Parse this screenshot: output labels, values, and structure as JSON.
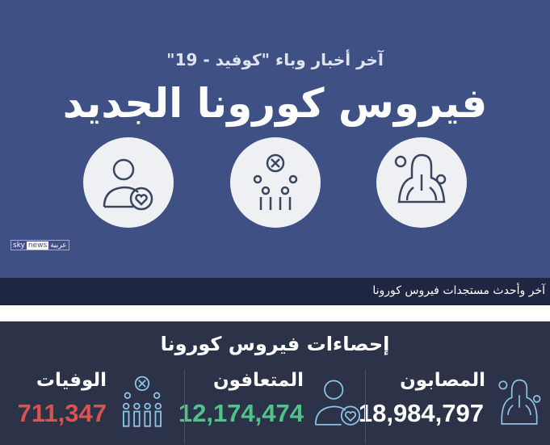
{
  "hero": {
    "subtitle": "آخر أخبار وباء \"كوفيد - 19\"",
    "title": "فيروس كورونا الجديد",
    "logo": {
      "sky": "sky",
      "news": "news",
      "arabic": "عربية"
    }
  },
  "caption": "آخر وأحدث مستجدات فيروس كورونا",
  "stats": {
    "title": "إحصاءات فيروس كورونا",
    "items": [
      {
        "label": "المصابون",
        "value": "18,984,797",
        "color": "#ffffff",
        "icon": "lungs-virus-icon"
      },
      {
        "label": "المتعافون",
        "value": "12,174,474",
        "color": "#4fc38a",
        "icon": "person-heart-icon"
      },
      {
        "label": "الوفيات",
        "value": "711,347",
        "color": "#d9534f",
        "icon": "group-x-icon"
      }
    ]
  },
  "colors": {
    "hero_bg": "#3f5184",
    "caption_bg": "#1f2641",
    "stats_bg": "#2c3248",
    "icon_line": "#8fc3e6"
  }
}
